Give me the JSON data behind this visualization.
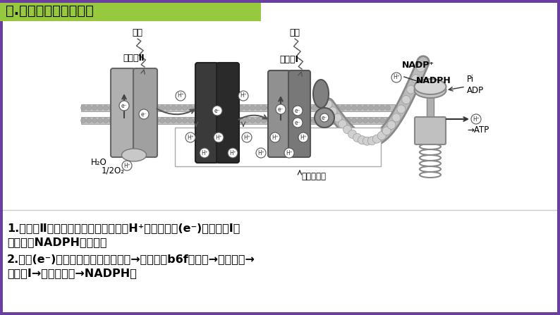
{
  "title": "一.光系统及电子传递链",
  "title_bg": "#96c93d",
  "title_color": "#000000",
  "border_color": "#6b3fa0",
  "bg_color": "#ffffff",
  "text_line1": "1.光系统Ⅱ进行水的光解，产生氧气和H⁺和自由电子(e⁻)，光系统Ⅰ主",
  "text_line2": "要是介导NADPH的产生。",
  "text_line3": "2.电子(e⁻)经过电子传递链：质体醌→细胞色素b6f复合体→质体蓝素→",
  "text_line4": "光系统Ⅰ→铁氧还蛋白→NADPH。",
  "ps2_gray": "#b0b0b0",
  "ps2_dark": "#787878",
  "cyt_dark": "#3a3a3a",
  "ps1_gray": "#888888",
  "mem_gray": "#c0c0c0",
  "mem_dark": "#909090",
  "atp_gray": "#a8a8a8"
}
